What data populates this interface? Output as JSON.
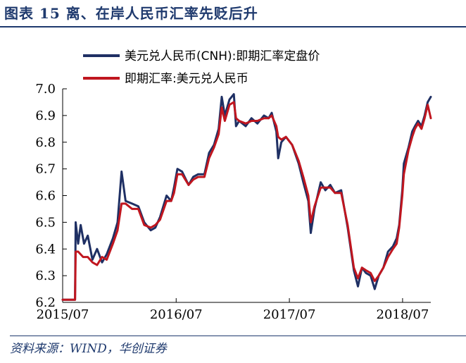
{
  "figure": {
    "title": "图表 15   离、在岸人民币汇率先贬后升",
    "source": "资料来源：WIND，华创证券"
  },
  "chart_data": {
    "type": "line",
    "title": "",
    "xlabel": "",
    "ylabel": "",
    "ylim": [
      6.2,
      7.0
    ],
    "xlim": [
      "2015-07-01",
      "2018-09-30"
    ],
    "y_ticks": [
      "7.0",
      "6.9",
      "6.8",
      "6.7",
      "6.6",
      "6.5",
      "6.4",
      "6.3",
      "6.2"
    ],
    "x_ticks": [
      {
        "date": "2015-07-01",
        "label": "2015/07"
      },
      {
        "date": "2016-07-01",
        "label": "2016/07"
      },
      {
        "date": "2017-07-01",
        "label": "2017/07"
      },
      {
        "date": "2018-07-01",
        "label": "2018/07"
      }
    ],
    "grid": false,
    "legend": "top-center",
    "series": [
      {
        "name": "美元兑人民币(CNH):即期汇率定盘价",
        "color": "#1f3064",
        "points": [
          [
            "2015-07-01",
            6.21
          ],
          [
            "2015-08-10",
            6.21
          ],
          [
            "2015-08-12",
            6.5
          ],
          [
            "2015-08-20",
            6.42
          ],
          [
            "2015-08-28",
            6.49
          ],
          [
            "2015-09-08",
            6.42
          ],
          [
            "2015-09-20",
            6.45
          ],
          [
            "2015-10-05",
            6.36
          ],
          [
            "2015-10-20",
            6.4
          ],
          [
            "2015-11-05",
            6.35
          ],
          [
            "2015-11-20",
            6.38
          ],
          [
            "2015-12-10",
            6.44
          ],
          [
            "2015-12-25",
            6.5
          ],
          [
            "2016-01-07",
            6.69
          ],
          [
            "2016-01-20",
            6.58
          ],
          [
            "2016-02-10",
            6.57
          ],
          [
            "2016-03-01",
            6.56
          ],
          [
            "2016-03-20",
            6.5
          ],
          [
            "2016-04-10",
            6.47
          ],
          [
            "2016-04-25",
            6.48
          ],
          [
            "2016-05-10",
            6.52
          ],
          [
            "2016-05-31",
            6.6
          ],
          [
            "2016-06-15",
            6.58
          ],
          [
            "2016-06-24",
            6.63
          ],
          [
            "2016-07-05",
            6.7
          ],
          [
            "2016-07-20",
            6.69
          ],
          [
            "2016-08-10",
            6.64
          ],
          [
            "2016-08-25",
            6.67
          ],
          [
            "2016-09-10",
            6.68
          ],
          [
            "2016-09-30",
            6.68
          ],
          [
            "2016-10-15",
            6.76
          ],
          [
            "2016-10-31",
            6.79
          ],
          [
            "2016-11-15",
            6.85
          ],
          [
            "2016-11-25",
            6.97
          ],
          [
            "2016-12-05",
            6.9
          ],
          [
            "2016-12-20",
            6.96
          ],
          [
            "2017-01-03",
            6.98
          ],
          [
            "2017-01-10",
            6.86
          ],
          [
            "2017-01-20",
            6.88
          ],
          [
            "2017-02-10",
            6.86
          ],
          [
            "2017-03-01",
            6.89
          ],
          [
            "2017-03-20",
            6.87
          ],
          [
            "2017-04-10",
            6.9
          ],
          [
            "2017-04-25",
            6.89
          ],
          [
            "2017-05-05",
            6.91
          ],
          [
            "2017-05-20",
            6.84
          ],
          [
            "2017-05-26",
            6.74
          ],
          [
            "2017-06-05",
            6.8
          ],
          [
            "2017-06-20",
            6.82
          ],
          [
            "2017-07-10",
            6.79
          ],
          [
            "2017-07-31",
            6.72
          ],
          [
            "2017-08-15",
            6.65
          ],
          [
            "2017-08-31",
            6.58
          ],
          [
            "2017-09-08",
            6.46
          ],
          [
            "2017-09-20",
            6.55
          ],
          [
            "2017-10-10",
            6.65
          ],
          [
            "2017-10-25",
            6.62
          ],
          [
            "2017-11-10",
            6.64
          ],
          [
            "2017-11-25",
            6.61
          ],
          [
            "2017-12-15",
            6.62
          ],
          [
            "2018-01-05",
            6.48
          ],
          [
            "2018-01-25",
            6.32
          ],
          [
            "2018-02-07",
            6.26
          ],
          [
            "2018-02-20",
            6.33
          ],
          [
            "2018-03-05",
            6.31
          ],
          [
            "2018-03-20",
            6.3
          ],
          [
            "2018-04-02",
            6.25
          ],
          [
            "2018-04-15",
            6.3
          ],
          [
            "2018-04-30",
            6.33
          ],
          [
            "2018-05-15",
            6.39
          ],
          [
            "2018-05-31",
            6.41
          ],
          [
            "2018-06-12",
            6.44
          ],
          [
            "2018-06-20",
            6.49
          ],
          [
            "2018-06-30",
            6.62
          ],
          [
            "2018-07-05",
            6.72
          ],
          [
            "2018-07-20",
            6.78
          ],
          [
            "2018-08-01",
            6.84
          ],
          [
            "2018-08-10",
            6.86
          ],
          [
            "2018-08-20",
            6.88
          ],
          [
            "2018-08-31",
            6.86
          ],
          [
            "2018-09-10",
            6.9
          ],
          [
            "2018-09-20",
            6.95
          ],
          [
            "2018-09-30",
            6.97
          ]
        ]
      },
      {
        "name": "即期汇率:美元兑人民币",
        "color": "#c0161f",
        "points": [
          [
            "2015-07-01",
            6.21
          ],
          [
            "2015-08-10",
            6.21
          ],
          [
            "2015-08-12",
            6.39
          ],
          [
            "2015-08-20",
            6.39
          ],
          [
            "2015-09-05",
            6.37
          ],
          [
            "2015-09-20",
            6.37
          ],
          [
            "2015-10-05",
            6.35
          ],
          [
            "2015-10-20",
            6.34
          ],
          [
            "2015-11-05",
            6.37
          ],
          [
            "2015-11-20",
            6.36
          ],
          [
            "2015-12-10",
            6.42
          ],
          [
            "2015-12-25",
            6.47
          ],
          [
            "2016-01-07",
            6.57
          ],
          [
            "2016-01-20",
            6.57
          ],
          [
            "2016-02-10",
            6.55
          ],
          [
            "2016-03-01",
            6.55
          ],
          [
            "2016-03-20",
            6.49
          ],
          [
            "2016-04-10",
            6.48
          ],
          [
            "2016-04-25",
            6.49
          ],
          [
            "2016-05-10",
            6.51
          ],
          [
            "2016-05-31",
            6.58
          ],
          [
            "2016-06-15",
            6.58
          ],
          [
            "2016-06-24",
            6.61
          ],
          [
            "2016-07-05",
            6.68
          ],
          [
            "2016-07-20",
            6.68
          ],
          [
            "2016-08-10",
            6.64
          ],
          [
            "2016-08-25",
            6.66
          ],
          [
            "2016-09-10",
            6.67
          ],
          [
            "2016-09-30",
            6.67
          ],
          [
            "2016-10-15",
            6.74
          ],
          [
            "2016-10-31",
            6.78
          ],
          [
            "2016-11-15",
            6.83
          ],
          [
            "2016-11-25",
            6.93
          ],
          [
            "2016-12-05",
            6.88
          ],
          [
            "2016-12-20",
            6.94
          ],
          [
            "2017-01-03",
            6.95
          ],
          [
            "2017-01-10",
            6.89
          ],
          [
            "2017-01-20",
            6.88
          ],
          [
            "2017-02-10",
            6.87
          ],
          [
            "2017-03-01",
            6.88
          ],
          [
            "2017-03-20",
            6.88
          ],
          [
            "2017-04-10",
            6.89
          ],
          [
            "2017-04-25",
            6.89
          ],
          [
            "2017-05-05",
            6.9
          ],
          [
            "2017-05-20",
            6.86
          ],
          [
            "2017-05-26",
            6.82
          ],
          [
            "2017-06-05",
            6.81
          ],
          [
            "2017-06-20",
            6.82
          ],
          [
            "2017-07-10",
            6.79
          ],
          [
            "2017-07-31",
            6.73
          ],
          [
            "2017-08-15",
            6.67
          ],
          [
            "2017-08-31",
            6.6
          ],
          [
            "2017-09-08",
            6.5
          ],
          [
            "2017-09-20",
            6.56
          ],
          [
            "2017-10-10",
            6.63
          ],
          [
            "2017-10-25",
            6.63
          ],
          [
            "2017-11-10",
            6.63
          ],
          [
            "2017-11-25",
            6.61
          ],
          [
            "2017-12-15",
            6.61
          ],
          [
            "2018-01-05",
            6.49
          ],
          [
            "2018-01-25",
            6.33
          ],
          [
            "2018-02-07",
            6.29
          ],
          [
            "2018-02-20",
            6.33
          ],
          [
            "2018-03-05",
            6.32
          ],
          [
            "2018-03-20",
            6.31
          ],
          [
            "2018-04-02",
            6.28
          ],
          [
            "2018-04-15",
            6.3
          ],
          [
            "2018-04-30",
            6.33
          ],
          [
            "2018-05-15",
            6.37
          ],
          [
            "2018-05-31",
            6.4
          ],
          [
            "2018-06-12",
            6.42
          ],
          [
            "2018-06-20",
            6.48
          ],
          [
            "2018-06-30",
            6.6
          ],
          [
            "2018-07-05",
            6.68
          ],
          [
            "2018-07-20",
            6.77
          ],
          [
            "2018-08-01",
            6.82
          ],
          [
            "2018-08-10",
            6.85
          ],
          [
            "2018-08-20",
            6.87
          ],
          [
            "2018-08-31",
            6.85
          ],
          [
            "2018-09-10",
            6.89
          ],
          [
            "2018-09-20",
            6.94
          ],
          [
            "2018-09-30",
            6.89
          ]
        ]
      }
    ]
  }
}
